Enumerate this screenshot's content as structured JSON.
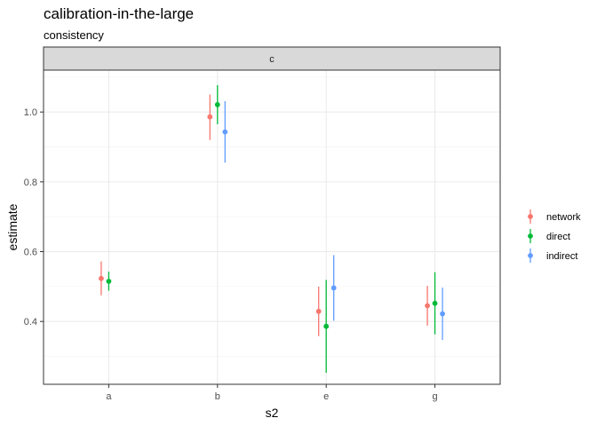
{
  "chart_data": {
    "type": "scatter",
    "title": "calibration-in-the-large",
    "subtitle": "consistency",
    "facet": "c",
    "xlabel": "s2",
    "ylabel": "estimate",
    "categories": [
      "a",
      "b",
      "e",
      "g"
    ],
    "y_ticks": [
      "0.4",
      "0.6",
      "0.8",
      "1.0"
    ],
    "y_tick_values": [
      0.4,
      0.6,
      0.8,
      1.0
    ],
    "ylim": [
      0.22,
      1.12
    ],
    "grid": true,
    "legend_position": "right",
    "series": [
      {
        "name": "network",
        "color": "#F8766D",
        "points": [
          {
            "x": "a",
            "estimate": 0.523,
            "lower": 0.475,
            "upper": 0.572
          },
          {
            "x": "b",
            "estimate": 0.986,
            "lower": 0.92,
            "upper": 1.05
          },
          {
            "x": "e",
            "estimate": 0.429,
            "lower": 0.358,
            "upper": 0.5
          },
          {
            "x": "g",
            "estimate": 0.445,
            "lower": 0.388,
            "upper": 0.502
          }
        ]
      },
      {
        "name": "direct",
        "color": "#00BA38",
        "points": [
          {
            "x": "a",
            "estimate": 0.515,
            "lower": 0.488,
            "upper": 0.543
          },
          {
            "x": "b",
            "estimate": 1.021,
            "lower": 0.965,
            "upper": 1.077
          },
          {
            "x": "e",
            "estimate": 0.386,
            "lower": 0.253,
            "upper": 0.519
          },
          {
            "x": "g",
            "estimate": 0.452,
            "lower": 0.363,
            "upper": 0.541
          }
        ]
      },
      {
        "name": "indirect",
        "color": "#619CFF",
        "points": [
          {
            "x": "b",
            "estimate": 0.943,
            "lower": 0.855,
            "upper": 1.031
          },
          {
            "x": "e",
            "estimate": 0.496,
            "lower": 0.402,
            "upper": 0.59
          },
          {
            "x": "g",
            "estimate": 0.422,
            "lower": 0.347,
            "upper": 0.497
          }
        ]
      }
    ]
  }
}
